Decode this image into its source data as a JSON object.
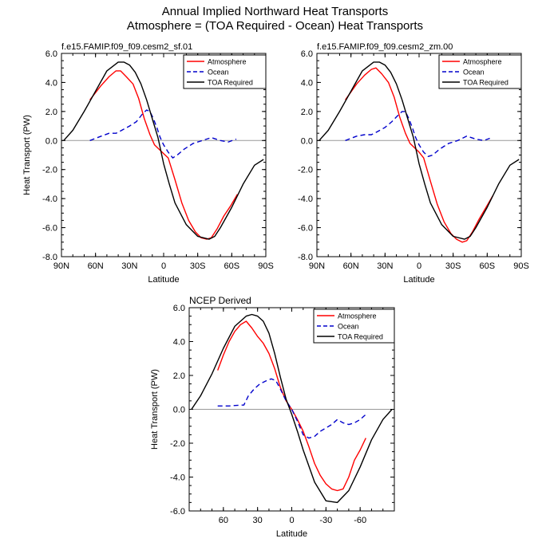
{
  "page_title": "Annual Implied Northward Heat Transports",
  "page_subtitle": "Atmosphere = (TOA Required - Ocean) Heat Transports",
  "colors": {
    "atmosphere": "#ff0000",
    "ocean": "#0000cc",
    "toa": "#000000",
    "zero_line": "#999999"
  },
  "chart_data": [
    {
      "type": "line",
      "title": "f.e15.FAMIP.f09_f09.cesm2_sf.01",
      "xlabel": "Latitude",
      "ylabel": "Heat Transport (PW)",
      "xlim": [
        90,
        -90
      ],
      "ylim": [
        -8,
        6
      ],
      "x_ticks": [
        90,
        60,
        30,
        0,
        -30,
        -60,
        -90
      ],
      "x_tick_labels": [
        "90N",
        "60N",
        "30N",
        "0",
        "30S",
        "60S",
        "90S"
      ],
      "y_ticks": [
        -8,
        -6,
        -4,
        -2,
        0,
        2,
        4,
        6
      ],
      "y_tick_labels": [
        "-8.0",
        "-6.0",
        "-4.0",
        "-2.0",
        "0.0",
        "2.0",
        "4.0",
        "6.0"
      ],
      "legend_position": "top-right",
      "series": [
        {
          "name": "Atmosphere",
          "style": "solid",
          "color": "#ff0000",
          "x": [
            65,
            55,
            48,
            42,
            38,
            33,
            27,
            22,
            17,
            12,
            8,
            4,
            0,
            -4,
            -10,
            -16,
            -22,
            -28,
            -33,
            -38,
            -42,
            -47,
            -53,
            -59,
            -65
          ],
          "y": [
            2.8,
            3.8,
            4.4,
            4.8,
            4.8,
            4.4,
            3.9,
            2.9,
            1.5,
            0.4,
            -0.3,
            -0.6,
            -0.9,
            -1.2,
            -2.7,
            -4.3,
            -5.5,
            -6.3,
            -6.7,
            -6.8,
            -6.7,
            -6.1,
            -5.2,
            -4.5,
            -3.7
          ]
        },
        {
          "name": "Ocean",
          "style": "dashed",
          "color": "#0000cc",
          "x": [
            65,
            55,
            48,
            42,
            37,
            30,
            24,
            19,
            15,
            12,
            9,
            6,
            3,
            0,
            -4,
            -8,
            -12,
            -18,
            -26,
            -34,
            -42,
            -50,
            -57,
            -64
          ],
          "y": [
            0.0,
            0.3,
            0.5,
            0.5,
            0.7,
            1.0,
            1.3,
            1.8,
            2.1,
            2.0,
            1.5,
            0.9,
            0.2,
            -0.3,
            -0.8,
            -1.2,
            -1.0,
            -0.6,
            -0.2,
            0.0,
            0.2,
            0.0,
            -0.1,
            0.1
          ]
        },
        {
          "name": "TOA Required",
          "style": "solid",
          "color": "#000000",
          "x": [
            88,
            80,
            70,
            60,
            50,
            40,
            35,
            30,
            25,
            20,
            15,
            10,
            5,
            0,
            -5,
            -10,
            -20,
            -30,
            -40,
            -45,
            -50,
            -60,
            -70,
            -80,
            -88
          ],
          "y": [
            0.0,
            0.7,
            2.0,
            3.4,
            4.8,
            5.4,
            5.4,
            5.2,
            4.7,
            3.9,
            2.8,
            1.5,
            0.2,
            -1.6,
            -3.0,
            -4.3,
            -5.8,
            -6.6,
            -6.8,
            -6.6,
            -6.0,
            -4.6,
            -3.0,
            -1.7,
            -1.3
          ]
        }
      ]
    },
    {
      "type": "line",
      "title": "f.e15.FAMIP.f09_f09.cesm2_zm.00",
      "xlabel": "Latitude",
      "ylabel": "",
      "xlim": [
        90,
        -90
      ],
      "ylim": [
        -8,
        6
      ],
      "x_ticks": [
        90,
        60,
        30,
        0,
        -30,
        -60,
        -90
      ],
      "x_tick_labels": [
        "90N",
        "60N",
        "30N",
        "0",
        "30S",
        "60S",
        "90S"
      ],
      "y_ticks": [
        -8,
        -6,
        -4,
        -2,
        0,
        2,
        4,
        6
      ],
      "y_tick_labels": [
        "-8.0",
        "-6.0",
        "-4.0",
        "-2.0",
        "0.0",
        "2.0",
        "4.0",
        "6.0"
      ],
      "legend_position": "top-right",
      "series": [
        {
          "name": "Atmosphere",
          "style": "solid",
          "color": "#ff0000",
          "x": [
            65,
            55,
            48,
            42,
            38,
            33,
            27,
            22,
            17,
            12,
            8,
            4,
            0,
            -4,
            -10,
            -16,
            -22,
            -28,
            -33,
            -38,
            -42,
            -47,
            -53,
            -59,
            -65
          ],
          "y": [
            2.8,
            3.9,
            4.5,
            4.9,
            5.0,
            4.6,
            4.0,
            3.0,
            1.6,
            0.5,
            -0.2,
            -0.5,
            -0.8,
            -1.2,
            -2.8,
            -4.4,
            -5.6,
            -6.4,
            -6.8,
            -7.0,
            -6.9,
            -6.3,
            -5.4,
            -4.6,
            -3.8
          ]
        },
        {
          "name": "Ocean",
          "style": "dashed",
          "color": "#0000cc",
          "x": [
            65,
            55,
            48,
            42,
            37,
            30,
            24,
            19,
            15,
            12,
            9,
            6,
            3,
            0,
            -4,
            -8,
            -12,
            -18,
            -26,
            -34,
            -42,
            -50,
            -57,
            -64
          ],
          "y": [
            0.0,
            0.3,
            0.4,
            0.4,
            0.6,
            0.9,
            1.3,
            1.7,
            2.0,
            2.0,
            1.5,
            0.9,
            0.2,
            -0.3,
            -0.8,
            -1.1,
            -1.0,
            -0.6,
            -0.2,
            0.0,
            0.3,
            0.1,
            0.0,
            0.2
          ]
        },
        {
          "name": "TOA Required",
          "style": "solid",
          "color": "#000000",
          "x": [
            88,
            80,
            70,
            60,
            50,
            40,
            35,
            30,
            25,
            20,
            15,
            10,
            5,
            0,
            -5,
            -10,
            -20,
            -30,
            -40,
            -45,
            -50,
            -60,
            -70,
            -80,
            -88
          ],
          "y": [
            0.0,
            0.7,
            2.0,
            3.4,
            4.8,
            5.4,
            5.4,
            5.2,
            4.7,
            3.9,
            2.8,
            1.5,
            0.2,
            -1.6,
            -3.0,
            -4.3,
            -5.8,
            -6.6,
            -6.8,
            -6.6,
            -6.0,
            -4.6,
            -3.0,
            -1.7,
            -1.3
          ]
        }
      ]
    },
    {
      "type": "line",
      "title": "NCEP Derived",
      "xlabel": "Latitude",
      "ylabel": "Heat Transport (PW)",
      "xlim": [
        90,
        -90
      ],
      "ylim": [
        -6,
        6
      ],
      "x_ticks": [
        60,
        30,
        0,
        -30,
        -60
      ],
      "x_tick_labels": [
        "60",
        "30",
        "0",
        "-30",
        "-60"
      ],
      "y_ticks": [
        -6,
        -4,
        -2,
        0,
        2,
        4,
        6
      ],
      "y_tick_labels": [
        "-6.0",
        "-4.0",
        "-2.0",
        "0.0",
        "2.0",
        "4.0",
        "6.0"
      ],
      "legend_position": "top-right",
      "series": [
        {
          "name": "Atmosphere",
          "style": "solid",
          "color": "#ff0000",
          "x": [
            65,
            60,
            55,
            50,
            45,
            40,
            35,
            30,
            25,
            20,
            15,
            10,
            5,
            0,
            -5,
            -10,
            -15,
            -20,
            -25,
            -30,
            -35,
            -40,
            -45,
            -50,
            -55,
            -60,
            -65
          ],
          "y": [
            2.3,
            3.2,
            4.0,
            4.6,
            5.0,
            5.2,
            4.8,
            4.3,
            3.9,
            3.3,
            2.4,
            1.3,
            0.5,
            0.0,
            -0.6,
            -1.3,
            -2.2,
            -3.2,
            -3.9,
            -4.4,
            -4.7,
            -4.8,
            -4.7,
            -4.0,
            -3.0,
            -2.4,
            -1.7
          ]
        },
        {
          "name": "Ocean",
          "style": "dashed",
          "color": "#0000cc",
          "x": [
            65,
            55,
            45,
            42,
            38,
            33,
            28,
            22,
            18,
            14,
            10,
            5,
            0,
            -5,
            -10,
            -15,
            -20,
            -25,
            -30,
            -35,
            -40,
            -45,
            -50,
            -55,
            -60,
            -65
          ],
          "y": [
            0.2,
            0.2,
            0.25,
            0.25,
            0.8,
            1.2,
            1.5,
            1.7,
            1.8,
            1.7,
            1.2,
            0.5,
            0.0,
            -0.7,
            -1.5,
            -1.7,
            -1.6,
            -1.3,
            -1.1,
            -0.9,
            -0.6,
            -0.8,
            -0.9,
            -0.8,
            -0.6,
            -0.3
          ]
        },
        {
          "name": "TOA Required",
          "style": "solid",
          "color": "#000000",
          "x": [
            88,
            80,
            70,
            60,
            50,
            40,
            35,
            30,
            25,
            20,
            15,
            10,
            5,
            0,
            -5,
            -10,
            -20,
            -30,
            -40,
            -50,
            -60,
            -70,
            -80,
            -88
          ],
          "y": [
            0.0,
            0.8,
            2.1,
            3.6,
            4.9,
            5.5,
            5.6,
            5.5,
            5.2,
            4.5,
            3.3,
            1.9,
            0.6,
            -0.3,
            -1.3,
            -2.4,
            -4.3,
            -5.4,
            -5.5,
            -4.8,
            -3.4,
            -1.8,
            -0.6,
            0.0
          ]
        }
      ]
    }
  ]
}
